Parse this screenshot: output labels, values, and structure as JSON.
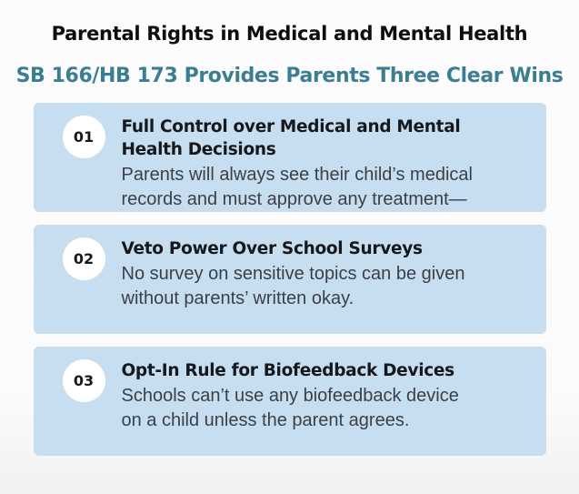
{
  "page": {
    "title": "Parental Rights in Medical and Mental Health",
    "subtitle": "SB 166/HB 173 Provides Parents Three Clear Wins"
  },
  "colors": {
    "page_bg": "#fcfcfc",
    "title_text": "#0d0e10",
    "subtitle_text": "#3c7e91",
    "card_bg": "#c6def0",
    "badge_bg": "#ffffff",
    "heading_text": "#15181c",
    "body_text": "#3b4047"
  },
  "cards": [
    {
      "number": "01",
      "heading": "Full Control over Medical and Mental Health Decisions",
      "body": "Parents will always see their child’s medical records and must approve any treatment—"
    },
    {
      "number": "02",
      "heading": "Veto Power Over School Surveys",
      "body": "No survey on sensitive topics can be given without parents’ written okay."
    },
    {
      "number": "03",
      "heading": "Opt-In Rule for Biofeedback Devices",
      "body": "Schools can’t use any biofeedback device on a child unless the parent agrees."
    }
  ]
}
